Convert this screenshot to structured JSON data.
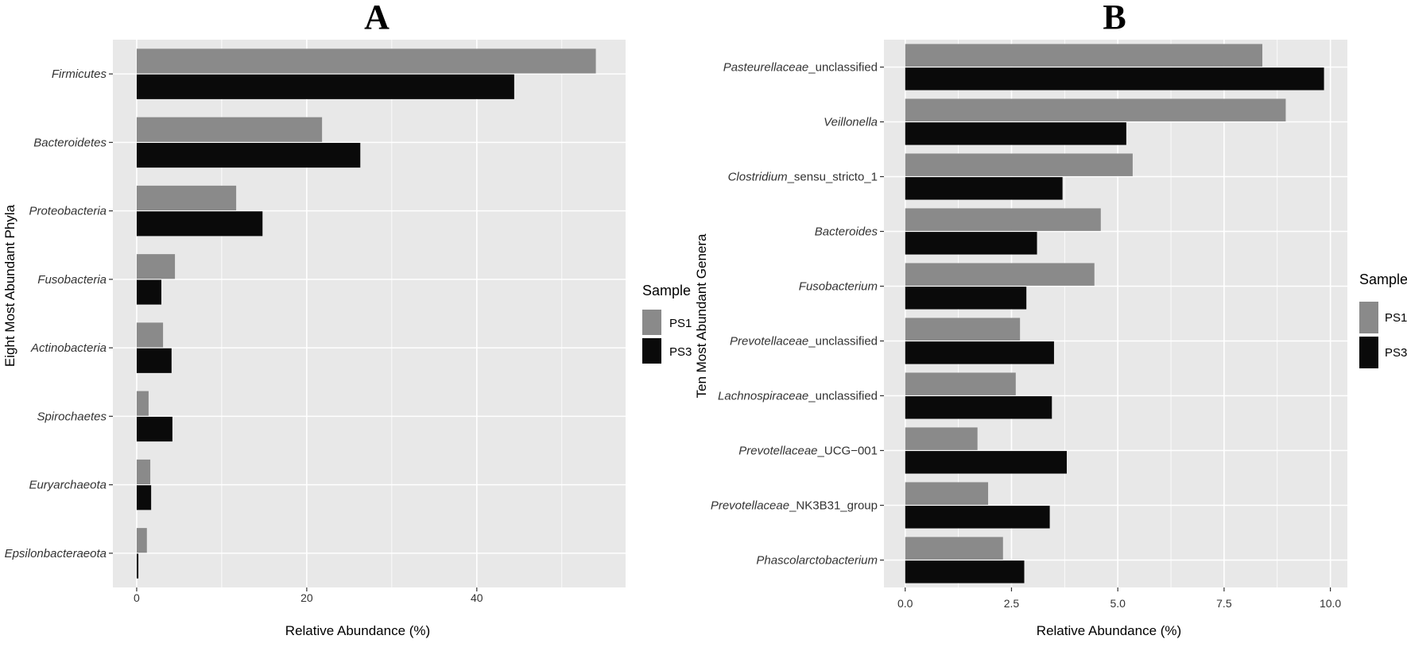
{
  "figure": {
    "colors": {
      "PS1": "#8a8a8a",
      "PS3": "#0a0a0a",
      "panel_bg": "#e8e8e8",
      "grid": "#ffffff"
    }
  },
  "chart_data": [
    {
      "type": "bar",
      "orientation": "horizontal",
      "panel_label": "A",
      "xlabel": "Relative Abundance (%)",
      "ylabel": "Eight Most Abundant Phyla",
      "xlim": [
        -2.8,
        57.5
      ],
      "xticks": [
        0,
        20,
        40
      ],
      "xtick_labels": [
        "0",
        "20",
        "40"
      ],
      "legend": {
        "title": "Sample",
        "entries": [
          "PS1",
          "PS3"
        ],
        "position": "right"
      },
      "categories": [
        [
          {
            "text": "Firmicutes",
            "italic": true
          }
        ],
        [
          {
            "text": "Bacteroidetes",
            "italic": true
          }
        ],
        [
          {
            "text": "Proteobacteria",
            "italic": true
          }
        ],
        [
          {
            "text": "Fusobacteria",
            "italic": true
          }
        ],
        [
          {
            "text": "Actinobacteria",
            "italic": true
          }
        ],
        [
          {
            "text": "Spirochaetes",
            "italic": true
          }
        ],
        [
          {
            "text": "Euryarchaeota",
            "italic": true
          }
        ],
        [
          {
            "text": "Epsilonbacteraeota",
            "italic": true
          }
        ]
      ],
      "series": [
        {
          "name": "PS1",
          "values": [
            54.0,
            21.8,
            11.7,
            4.5,
            3.1,
            1.4,
            1.6,
            1.2
          ]
        },
        {
          "name": "PS3",
          "values": [
            44.4,
            26.3,
            14.8,
            2.9,
            4.1,
            4.2,
            1.7,
            0.2
          ]
        }
      ]
    },
    {
      "type": "bar",
      "orientation": "horizontal",
      "panel_label": "B",
      "xlabel": "Relative Abundance (%)",
      "ylabel": "Ten Most Abundant Genera",
      "xlim": [
        -0.5,
        10.4
      ],
      "xticks": [
        0,
        2.5,
        5,
        7.5,
        10
      ],
      "xtick_labels": [
        "0.0",
        "2.5",
        "5.0",
        "7.5",
        "10.0"
      ],
      "legend": {
        "title": "Sample",
        "entries": [
          "PS1",
          "PS3"
        ],
        "position": "right"
      },
      "categories": [
        [
          {
            "text": "Pasteurellaceae",
            "italic": true
          },
          {
            "text": "_unclassified",
            "italic": false
          }
        ],
        [
          {
            "text": "Veillonella",
            "italic": true
          }
        ],
        [
          {
            "text": "Clostridium",
            "italic": true
          },
          {
            "text": "_sensu_stricto_1",
            "italic": false
          }
        ],
        [
          {
            "text": "Bacteroides",
            "italic": true
          }
        ],
        [
          {
            "text": "Fusobacterium",
            "italic": true
          }
        ],
        [
          {
            "text": "Prevotellaceae",
            "italic": true
          },
          {
            "text": "_unclassified",
            "italic": false
          }
        ],
        [
          {
            "text": "Lachnospiraceae",
            "italic": true
          },
          {
            "text": "_unclassified",
            "italic": false
          }
        ],
        [
          {
            "text": "Prevotellaceae",
            "italic": true
          },
          {
            "text": "_UCG−001",
            "italic": false
          }
        ],
        [
          {
            "text": "Prevotellaceae",
            "italic": true
          },
          {
            "text": "_NK3B31_group",
            "italic": false
          }
        ],
        [
          {
            "text": "Phascolarctobacterium",
            "italic": true
          }
        ]
      ],
      "series": [
        {
          "name": "PS1",
          "values": [
            8.4,
            8.95,
            5.35,
            4.6,
            4.45,
            2.7,
            2.6,
            1.7,
            1.95,
            2.3
          ]
        },
        {
          "name": "PS3",
          "values": [
            9.85,
            5.2,
            3.7,
            3.1,
            2.85,
            3.5,
            3.45,
            3.8,
            3.4,
            2.8
          ]
        }
      ]
    }
  ]
}
